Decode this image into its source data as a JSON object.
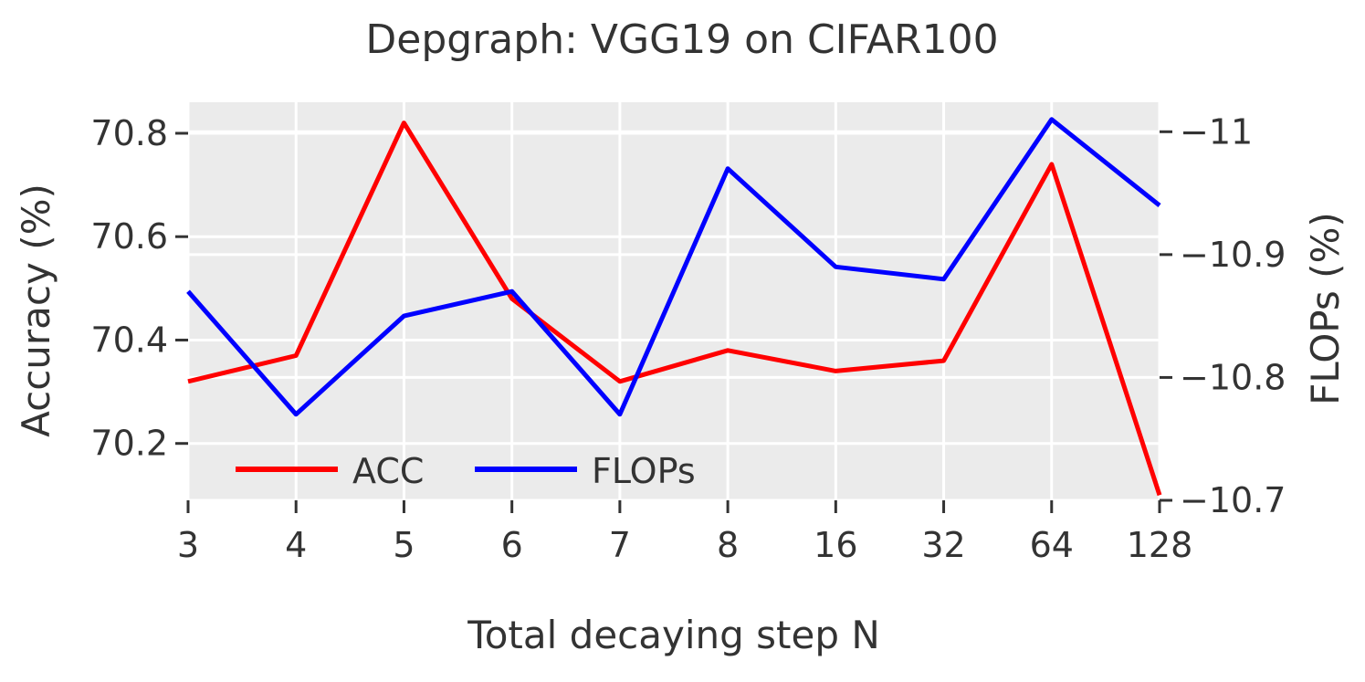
{
  "chart_data": {
    "type": "line",
    "title": "Depgraph: VGG19 on CIFAR100",
    "xlabel": "Total decaying step N",
    "ylabel_left": "Accuracy (%)",
    "ylabel_right": "FLOPs (%)",
    "categories": [
      "3",
      "4",
      "5",
      "6",
      "7",
      "8",
      "16",
      "32",
      "64",
      "128"
    ],
    "y_left_ticks": [
      "70.2",
      "70.4",
      "70.6",
      "70.8"
    ],
    "y_right_ticks": [
      "-11",
      "-10.9",
      "-10.8",
      "-10.7"
    ],
    "y_left_range": [
      70.09,
      70.86
    ],
    "y_right_range": [
      -11.024,
      -10.7
    ],
    "series": [
      {
        "name": "ACC",
        "axis": "left",
        "color": "#ff0000",
        "values": [
          70.32,
          70.37,
          70.82,
          70.48,
          70.32,
          70.38,
          70.34,
          70.36,
          70.74,
          70.1
        ]
      },
      {
        "name": "FLOPs",
        "axis": "right",
        "color": "#0000ff",
        "values": [
          -10.87,
          -10.77,
          -10.85,
          -10.87,
          -10.77,
          -10.97,
          -10.89,
          -10.88,
          -11.01,
          -10.94
        ]
      }
    ],
    "grid": true,
    "background": "#ebebeb",
    "legend": "bottom-left"
  }
}
